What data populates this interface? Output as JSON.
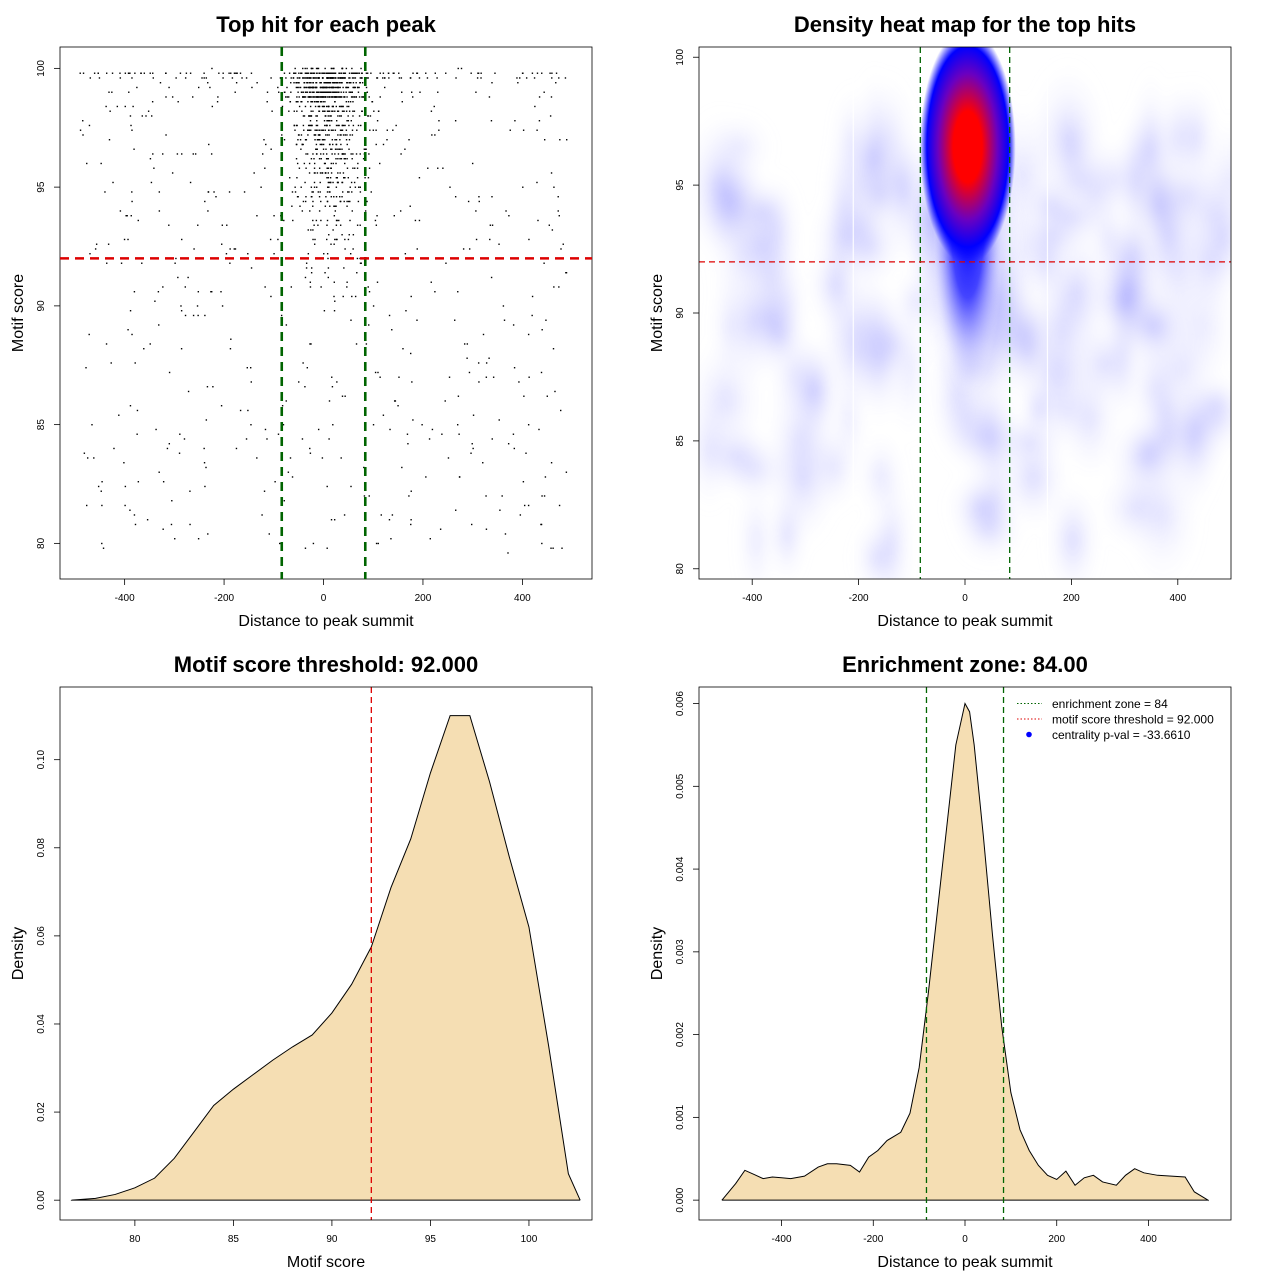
{
  "chart_data": [
    {
      "type": "scatter",
      "title": "Top hit for each peak",
      "xlabel": "Distance to peak summit",
      "ylabel": "Motif score",
      "xlim": [
        -530,
        540
      ],
      "ylim": [
        78.5,
        100.9
      ],
      "xticks": [
        "-400",
        "-200",
        "0",
        "200",
        "400"
      ],
      "yticks": [
        "80",
        "85",
        "90",
        "95",
        "100"
      ],
      "xtick_values": [
        -400,
        -200,
        0,
        200,
        400
      ],
      "ytick_values": [
        80,
        85,
        90,
        95,
        100
      ],
      "ref_lines": {
        "vertical": [
          -84,
          84
        ],
        "horizontal": [
          92
        ],
        "vertical_color": "#006400",
        "horizontal_color": "#dd0000"
      },
      "point_color": "#000000"
    },
    {
      "type": "heatmap",
      "title": "Density heat map for the top hits",
      "xlabel": "Distance to peak summit",
      "ylabel": "Motif score",
      "xlim": [
        -500,
        500
      ],
      "ylim": [
        79.6,
        100.4
      ],
      "xticks": [
        "-400",
        "-200",
        "0",
        "200",
        "400"
      ],
      "yticks": [
        "80",
        "85",
        "90",
        "95",
        "100"
      ],
      "xtick_values": [
        -400,
        -200,
        0,
        200,
        400
      ],
      "ytick_values": [
        80,
        85,
        90,
        95,
        100
      ],
      "peak": {
        "x": 5,
        "y": 96.5
      },
      "colors": [
        "#ffffff",
        "#0000ff",
        "#ff0000"
      ],
      "ref_lines": {
        "vertical": [
          -84,
          84
        ],
        "horizontal": [
          92
        ],
        "vertical_color": "#006400",
        "horizontal_color": "#dd0000"
      }
    },
    {
      "type": "area",
      "title": "Motif score threshold: 92.000",
      "xlabel": "Motif score",
      "ylabel": "Density",
      "xlim": [
        76.2,
        103.2
      ],
      "ylim": [
        -0.0045,
        0.1165
      ],
      "xticks": [
        "80",
        "85",
        "90",
        "95",
        "100"
      ],
      "yticks": [
        "0.00",
        "0.02",
        "0.04",
        "0.06",
        "0.08",
        "0.10"
      ],
      "xtick_values": [
        80,
        85,
        90,
        95,
        100
      ],
      "ytick_values": [
        0,
        0.02,
        0.04,
        0.06,
        0.08,
        0.1
      ],
      "fill": "#f5deb3",
      "x": [
        76.8,
        78,
        79,
        80,
        81,
        82,
        83,
        84,
        85,
        86,
        87,
        88,
        89,
        90,
        91,
        92,
        93,
        94,
        95,
        96,
        97,
        98,
        99,
        100,
        101,
        102,
        102.6
      ],
      "y": [
        0,
        0.0004,
        0.0013,
        0.0028,
        0.005,
        0.0095,
        0.0155,
        0.0215,
        0.0252,
        0.0285,
        0.0318,
        0.0348,
        0.0375,
        0.0425,
        0.049,
        0.0575,
        0.071,
        0.082,
        0.097,
        0.11,
        0.11,
        0.095,
        0.078,
        0.062,
        0.035,
        0.006,
        0
      ],
      "ref_lines": {
        "vertical": [
          92
        ],
        "vertical_color": "#dd0000"
      }
    },
    {
      "type": "area",
      "title": "Enrichment zone: 84.00",
      "xlabel": "Distance to peak summit",
      "ylabel": "Density",
      "xlim": [
        -580,
        580
      ],
      "ylim": [
        -0.00024,
        0.0062
      ],
      "xticks": [
        "-400",
        "-200",
        "0",
        "200",
        "400"
      ],
      "yticks": [
        "0.000",
        "0.001",
        "0.002",
        "0.003",
        "0.004",
        "0.005",
        "0.006"
      ],
      "xtick_values": [
        -400,
        -200,
        0,
        200,
        400
      ],
      "ytick_values": [
        0,
        0.001,
        0.002,
        0.003,
        0.004,
        0.005,
        0.006
      ],
      "fill": "#f5deb3",
      "x": [
        -530,
        -500,
        -480,
        -460,
        -440,
        -420,
        -400,
        -380,
        -350,
        -320,
        -300,
        -280,
        -250,
        -230,
        -210,
        -190,
        -170,
        -140,
        -120,
        -100,
        -80,
        -60,
        -40,
        -20,
        0,
        10,
        20,
        40,
        60,
        80,
        100,
        120,
        140,
        160,
        180,
        200,
        220,
        240,
        260,
        280,
        300,
        330,
        350,
        370,
        390,
        420,
        450,
        480,
        500,
        530
      ],
      "y": [
        0,
        0.0002,
        0.00036,
        0.00031,
        0.00026,
        0.00028,
        0.00027,
        0.00026,
        0.00029,
        0.0004,
        0.00044,
        0.00044,
        0.00042,
        0.00034,
        0.00052,
        0.0006,
        0.00072,
        0.00082,
        0.00105,
        0.0016,
        0.0025,
        0.0035,
        0.0045,
        0.0055,
        0.006,
        0.0059,
        0.0055,
        0.0044,
        0.0032,
        0.0021,
        0.0013,
        0.00085,
        0.0006,
        0.00042,
        0.0003,
        0.00025,
        0.00035,
        0.00018,
        0.00027,
        0.0003,
        0.00022,
        0.00018,
        0.0003,
        0.00038,
        0.00033,
        0.0003,
        0.00029,
        0.00028,
        0.0001,
        0
      ],
      "ref_lines": {
        "vertical": [
          -84,
          84
        ],
        "vertical_color": "#006400"
      },
      "legend": {
        "placement": "top-right",
        "entries": [
          {
            "label": "enrichment zone = 84",
            "style": "dotted-line",
            "color": "#006400"
          },
          {
            "label": "motif score threshold = 92.000",
            "style": "dotted-line",
            "color": "#dd0000"
          },
          {
            "label": "centrality p-val = -33.6610",
            "style": "point",
            "color": "#0000ff"
          }
        ]
      }
    }
  ]
}
